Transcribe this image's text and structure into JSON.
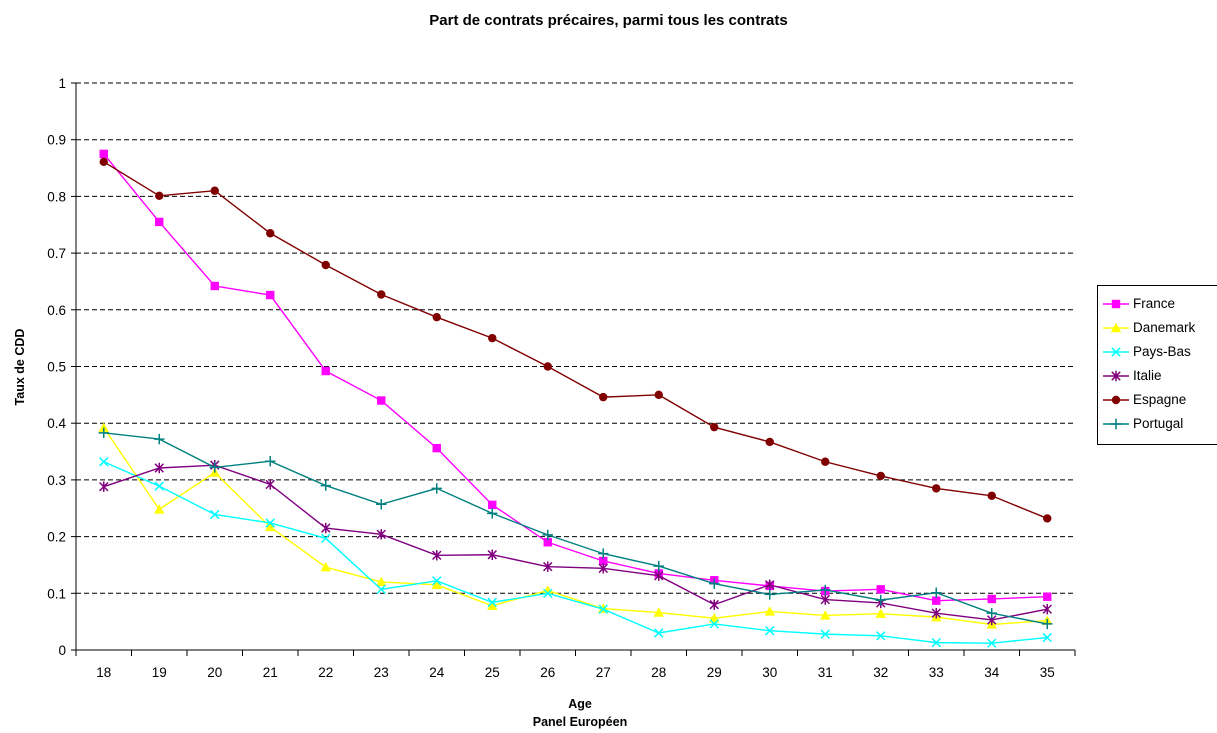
{
  "chart_data": {
    "type": "line",
    "title": "Part de contrats précaires, parmi tous les contrats",
    "ylabel": "Taux de CDD",
    "xlabel": "Age",
    "xlabel2": "Panel Européen",
    "ylim": [
      0,
      1
    ],
    "yticks": [
      "0",
      "0.1",
      "0.2",
      "0.3",
      "0.4",
      "0.5",
      "0.6",
      "0.7",
      "0.8",
      "0.9",
      "1"
    ],
    "grid": "horizontal dashed",
    "legend_position": "right",
    "categories": [
      "18",
      "19",
      "20",
      "21",
      "22",
      "23",
      "24",
      "25",
      "26",
      "27",
      "28",
      "29",
      "30",
      "31",
      "32",
      "33",
      "34",
      "35"
    ],
    "series": [
      {
        "name": "France",
        "color": "#ff00ff",
        "marker": "square",
        "values": [
          0.875,
          0.755,
          0.642,
          0.626,
          0.492,
          0.44,
          0.356,
          0.256,
          0.19,
          0.157,
          0.135,
          0.123,
          0.113,
          0.104,
          0.107,
          0.087,
          0.09,
          0.094
        ]
      },
      {
        "name": "Danemark",
        "color": "#ffff00",
        "marker": "triangle",
        "values": [
          0.392,
          0.248,
          0.313,
          0.217,
          0.146,
          0.12,
          0.115,
          0.078,
          0.105,
          0.073,
          0.066,
          0.056,
          0.068,
          0.061,
          0.064,
          0.058,
          0.045,
          0.052
        ]
      },
      {
        "name": "Pays-Bas",
        "color": "#00ffff",
        "marker": "x",
        "values": [
          0.332,
          0.289,
          0.239,
          0.224,
          0.197,
          0.107,
          0.122,
          0.084,
          0.1,
          0.072,
          0.03,
          0.046,
          0.034,
          0.028,
          0.025,
          0.013,
          0.012,
          0.022
        ]
      },
      {
        "name": "Italie",
        "color": "#800080",
        "marker": "star",
        "values": [
          0.288,
          0.321,
          0.326,
          0.292,
          0.215,
          0.204,
          0.167,
          0.168,
          0.147,
          0.144,
          0.131,
          0.08,
          0.115,
          0.089,
          0.083,
          0.065,
          0.053,
          0.072
        ]
      },
      {
        "name": "Espagne",
        "color": "#800000",
        "marker": "circle",
        "values": [
          0.861,
          0.801,
          0.81,
          0.735,
          0.679,
          0.627,
          0.587,
          0.55,
          0.5,
          0.446,
          0.45,
          0.393,
          0.367,
          0.332,
          0.307,
          0.285,
          0.272,
          0.232
        ]
      },
      {
        "name": "Portugal",
        "color": "#008080",
        "marker": "plus",
        "values": [
          0.383,
          0.372,
          0.322,
          0.333,
          0.29,
          0.257,
          0.285,
          0.241,
          0.203,
          0.17,
          0.148,
          0.117,
          0.098,
          0.106,
          0.088,
          0.101,
          0.065,
          0.046
        ]
      }
    ]
  }
}
